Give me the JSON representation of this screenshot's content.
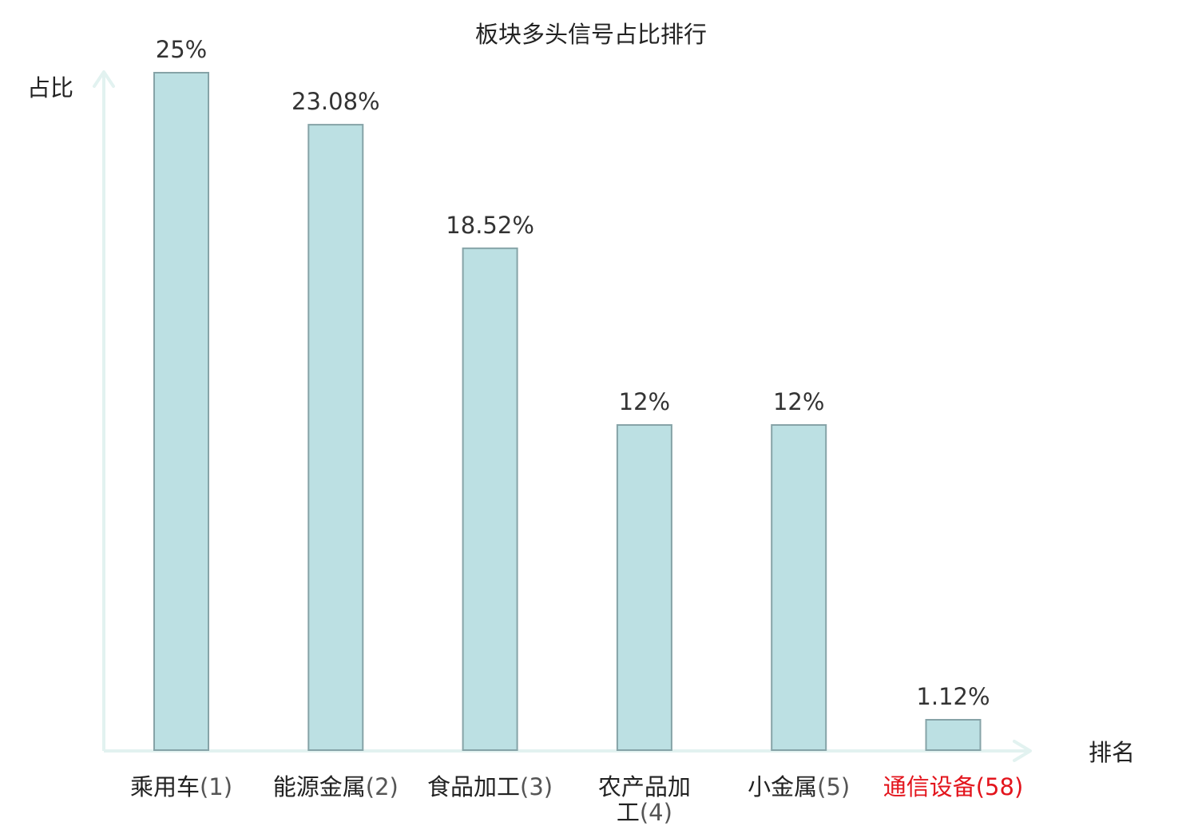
{
  "chart_data": {
    "type": "bar",
    "title": "板块多头信号占比排行",
    "ylabel": "占比",
    "xlabel": "排名",
    "categories": [
      "乘用车",
      "能源金属",
      "食品加工",
      "农产品加工",
      "小金属",
      "通信设备"
    ],
    "ranks": [
      "(1)",
      "(2)",
      "(3)",
      "(4)",
      "(5)",
      "(58)"
    ],
    "values": [
      25,
      23.08,
      18.52,
      12,
      12,
      1.12
    ],
    "value_labels": [
      "25%",
      "23.08%",
      "18.52%",
      "12%",
      "12%",
      "1.12%"
    ],
    "highlight_index": 5,
    "ylim": [
      0,
      25
    ],
    "grid": false,
    "legend": "none",
    "colors": {
      "bar_fill": "#bce0e3",
      "bar_stroke": "#86a3a7",
      "axis": "#e2f2f0",
      "text": "#222222",
      "value_text": "#333333",
      "highlight": "#e3141c"
    }
  }
}
